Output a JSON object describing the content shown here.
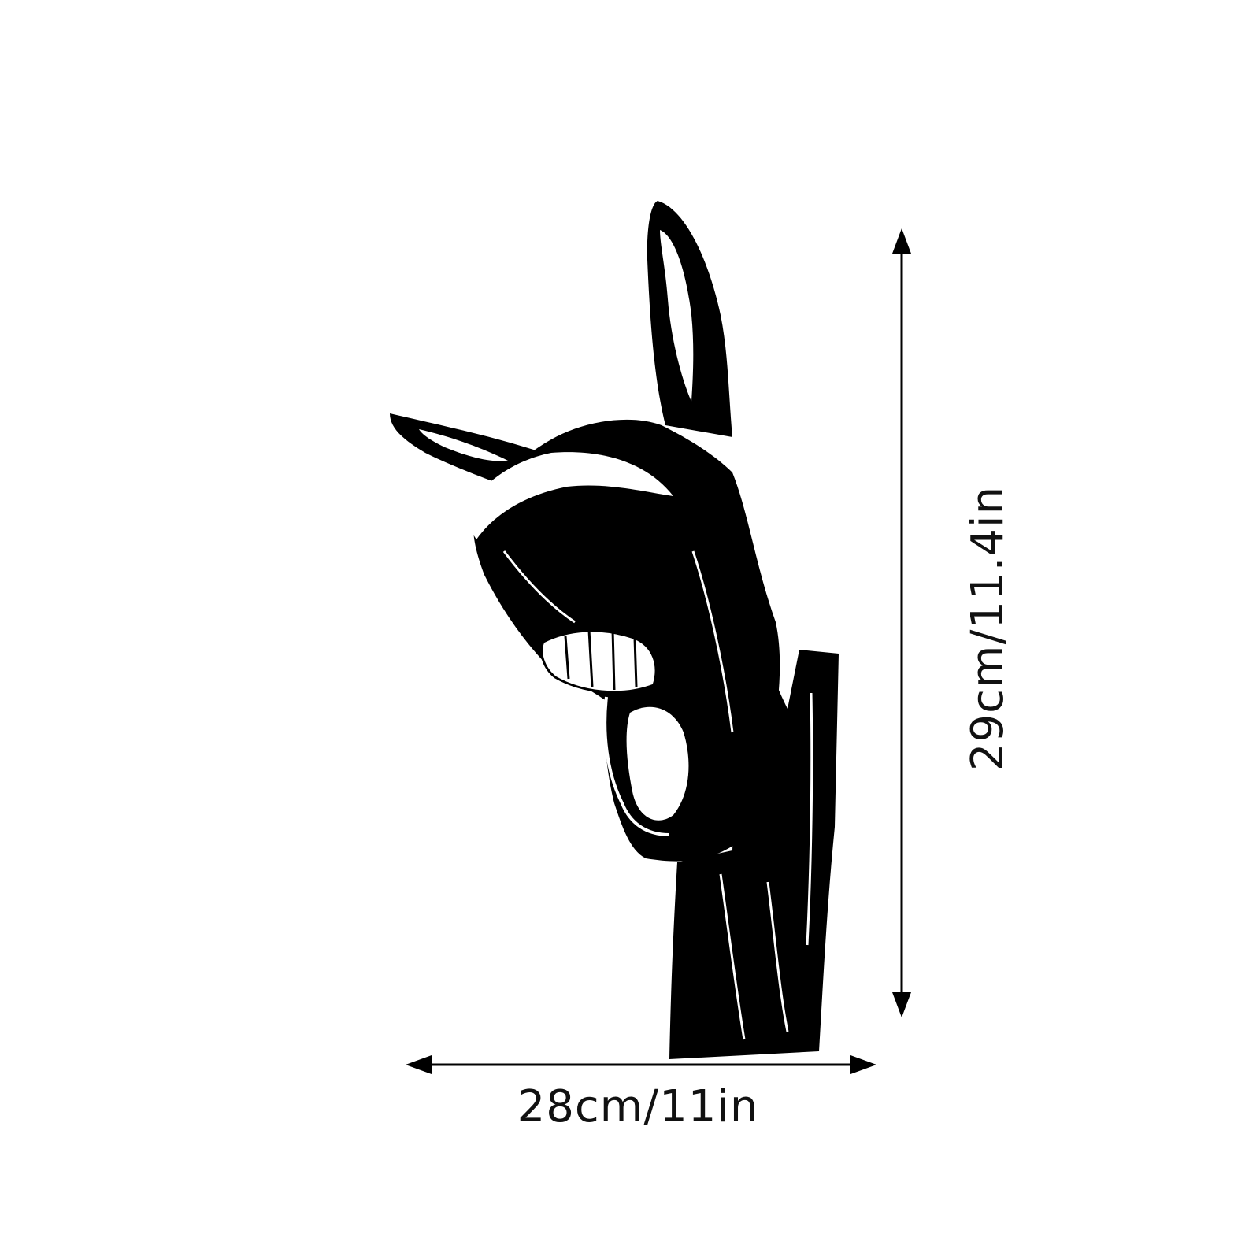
{
  "dimensions": {
    "width_label": "28cm/11in",
    "height_label": "29cm/11.4in"
  },
  "colors": {
    "background": "#ffffff",
    "ink": "#000000"
  },
  "artwork": {
    "icon": "laughing-donkey-silhouette-icon"
  }
}
